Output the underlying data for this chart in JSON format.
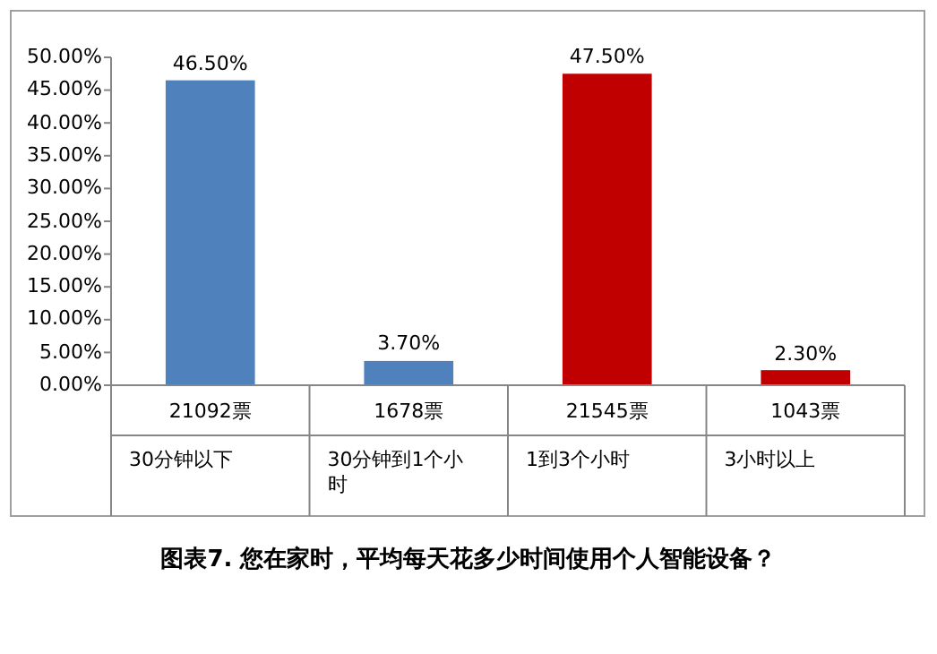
{
  "chart_data": {
    "type": "bar",
    "title": "图表7. 您在家时，平均每天花多少时间使用个人智能设备？",
    "categories": [
      "30分钟以下",
      "30分钟到1个小时",
      "1到3个小时",
      "3小时以上"
    ],
    "values": [
      46.5,
      3.7,
      47.5,
      2.3
    ],
    "colors": [
      "#4f81bd",
      "#4f81bd",
      "#c00000",
      "#c00000"
    ],
    "value_labels": [
      "46.50%",
      "3.70%",
      "47.50%",
      "2.30%"
    ],
    "ylim": [
      0,
      50
    ],
    "yticks": [
      {
        "value": 0,
        "label": "0.00%"
      },
      {
        "value": 5,
        "label": "5.00%"
      },
      {
        "value": 10,
        "label": "10.00%"
      },
      {
        "value": 15,
        "label": "15.00%"
      },
      {
        "value": 20,
        "label": "20.00%"
      },
      {
        "value": 25,
        "label": "25.00%"
      },
      {
        "value": 30,
        "label": "30.00%"
      },
      {
        "value": 35,
        "label": "35.00%"
      },
      {
        "value": 40,
        "label": "40.00%"
      },
      {
        "value": 45,
        "label": "45.00%"
      },
      {
        "value": 50,
        "label": "50.00%"
      }
    ],
    "annotations": [
      "21092票",
      "1678票",
      "21545票",
      "1043票"
    ]
  }
}
